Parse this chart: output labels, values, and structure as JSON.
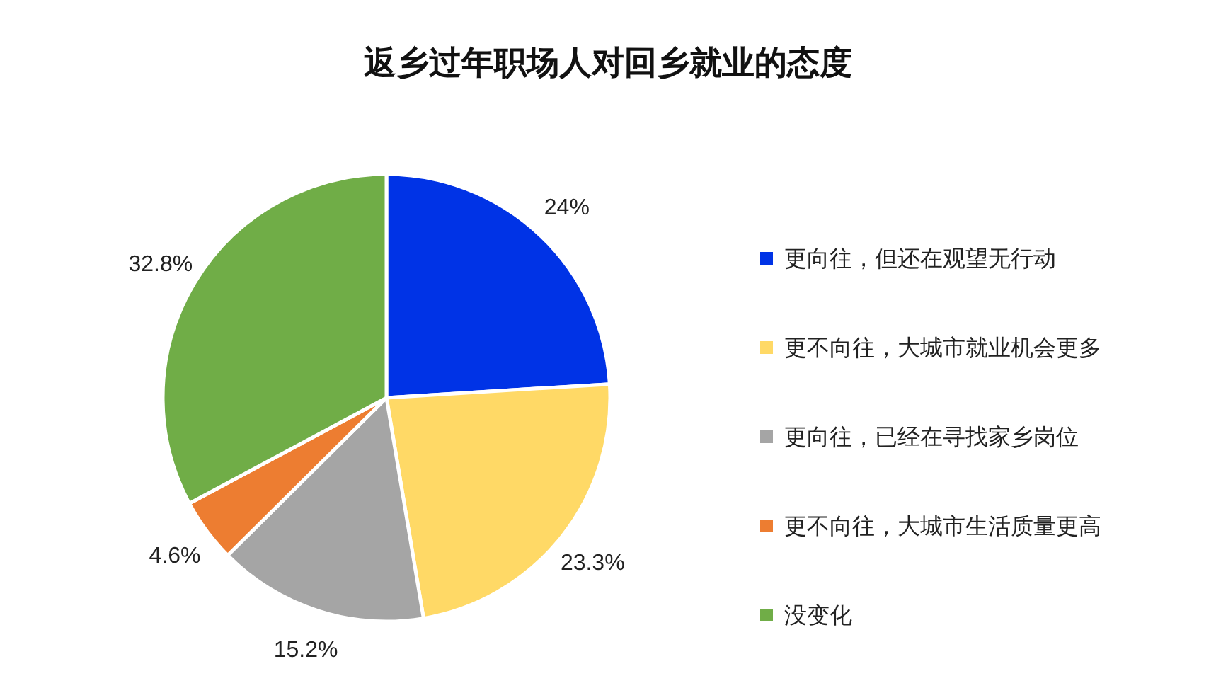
{
  "chart_data": {
    "type": "pie",
    "title": "返乡过年职场人对回乡就业的态度",
    "categories": [
      "更向往，但还在观望无行动",
      "更不向往，大城市就业机会更多",
      "更向往，已经在寻找家乡岗位",
      "更不向往，大城市生活质量更高",
      "没变化"
    ],
    "values": [
      24,
      23.3,
      15.2,
      4.6,
      32.8
    ],
    "value_labels": [
      "24%",
      "23.3%",
      "15.2%",
      "4.6%",
      "32.8%"
    ],
    "colors": [
      "#0033e6",
      "#ffd966",
      "#a5a5a5",
      "#ed7d31",
      "#70ad47"
    ],
    "legend": "right"
  }
}
